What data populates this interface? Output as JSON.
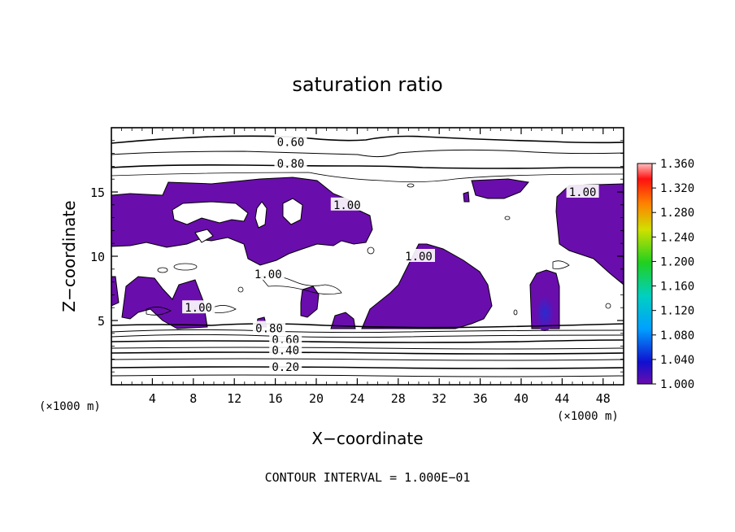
{
  "chart_data": {
    "type": "contour",
    "title": "saturation ratio",
    "xlabel": "X−coordinate",
    "ylabel": "Z−coordinate",
    "x_unit_left": "(×1000 m)",
    "x_unit_right": "(×1000 m)",
    "footer": "CONTOUR INTERVAL = 1.000E−01",
    "xlim": [
      0,
      50
    ],
    "ylim": [
      0,
      20
    ],
    "x_ticks": [
      4,
      8,
      12,
      16,
      20,
      24,
      28,
      32,
      36,
      40,
      44,
      48
    ],
    "y_ticks": [
      5,
      10,
      15
    ],
    "contour_labels": [
      {
        "text": "0.60",
        "x": 17.5,
        "z": 18.9
      },
      {
        "text": "0.80",
        "x": 17.5,
        "z": 17.2
      },
      {
        "text": "0.80",
        "x": 15.4,
        "z": 4.4
      },
      {
        "text": "0.60",
        "x": 17.0,
        "z": 3.5
      },
      {
        "text": "0.40",
        "x": 17.0,
        "z": 2.7
      },
      {
        "text": "0.20",
        "x": 17.0,
        "z": 1.4
      },
      {
        "text": "1.00",
        "x": 46.0,
        "z": 15.0
      },
      {
        "text": "1.00",
        "x": 23.0,
        "z": 14.0
      },
      {
        "text": "1.00",
        "x": 15.3,
        "z": 8.6
      },
      {
        "text": "1.00",
        "x": 8.5,
        "z": 6.0
      },
      {
        "text": "1.00",
        "x": 30.0,
        "z": 10.0
      }
    ],
    "colorbar": {
      "min": 1.0,
      "max": 1.36,
      "ticks": [
        "1.360",
        "1.320",
        "1.280",
        "1.240",
        "1.200",
        "1.160",
        "1.120",
        "1.080",
        "1.040",
        "1.000"
      ]
    },
    "colors": {
      "supersaturated": "#6a0dad",
      "core": "#3a2bb8"
    }
  }
}
